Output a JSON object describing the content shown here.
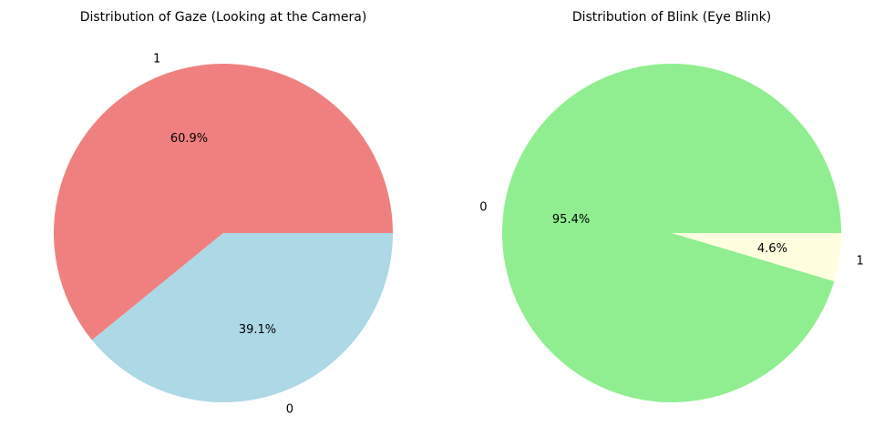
{
  "chart_data": [
    {
      "type": "pie",
      "title": "Distribution of Gaze (Looking at the Camera)",
      "slices": [
        {
          "label": "1",
          "percent": 60.9,
          "pct_label": "60.9%",
          "color": "#f08080"
        },
        {
          "label": "0",
          "percent": 39.1,
          "pct_label": "39.1%",
          "color": "#add8e6"
        }
      ]
    },
    {
      "type": "pie",
      "title": "Distribution of Blink (Eye Blink)",
      "slices": [
        {
          "label": "0",
          "percent": 95.4,
          "pct_label": "95.4%",
          "color": "#90ee90"
        },
        {
          "label": "1",
          "percent": 4.6,
          "pct_label": "4.6%",
          "color": "#ffffe0"
        }
      ]
    }
  ]
}
